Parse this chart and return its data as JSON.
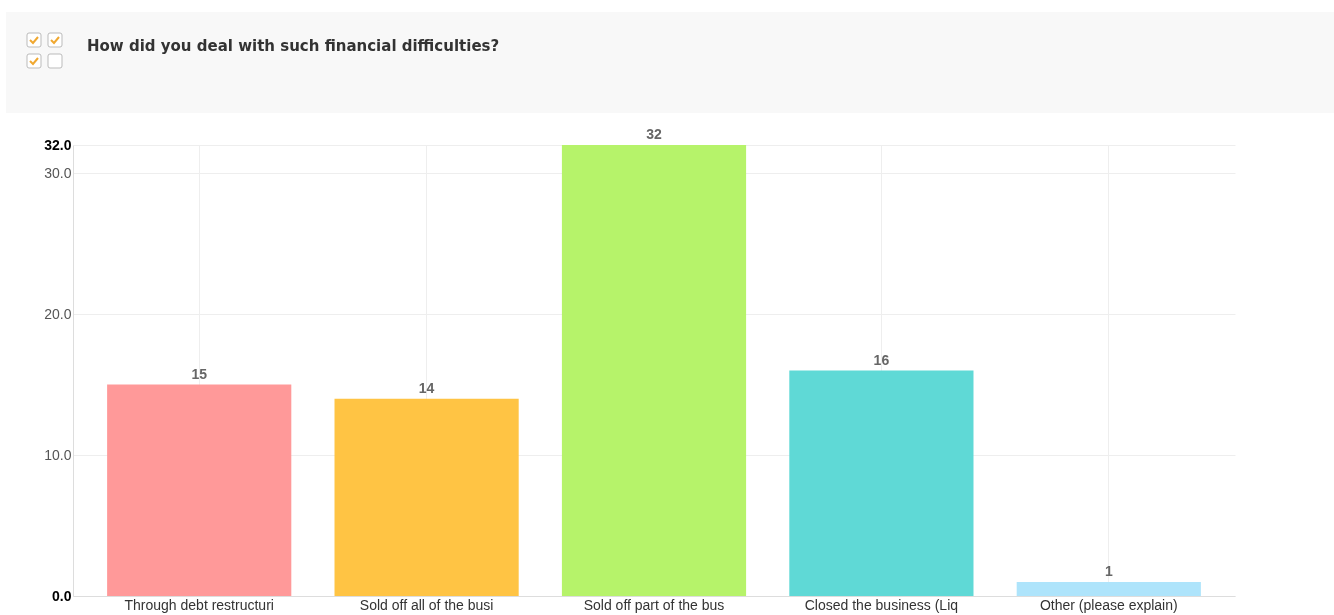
{
  "chart_data": {
    "type": "bar",
    "title": "How did you deal with such financial difficulties?",
    "categories": [
      "Through debt restructuri",
      "Sold off all of the busi",
      "Sold off part of the bus",
      "Closed the business (Liq",
      "Other (please explain)"
    ],
    "values": [
      15,
      14,
      32,
      16,
      1
    ],
    "colors": [
      "#ff9999",
      "#ffc444",
      "#b6f36a",
      "#5fd9d6",
      "#aee4fb"
    ],
    "ylim": [
      0,
      32
    ],
    "yticks": [
      {
        "value": 0,
        "label": "0.0"
      },
      {
        "value": 10,
        "label": "10.0"
      },
      {
        "value": 20,
        "label": "20.0"
      },
      {
        "value": 30,
        "label": "30.0"
      },
      {
        "value": 32,
        "label": "32.0"
      }
    ],
    "grid": true,
    "data_labels": true
  }
}
